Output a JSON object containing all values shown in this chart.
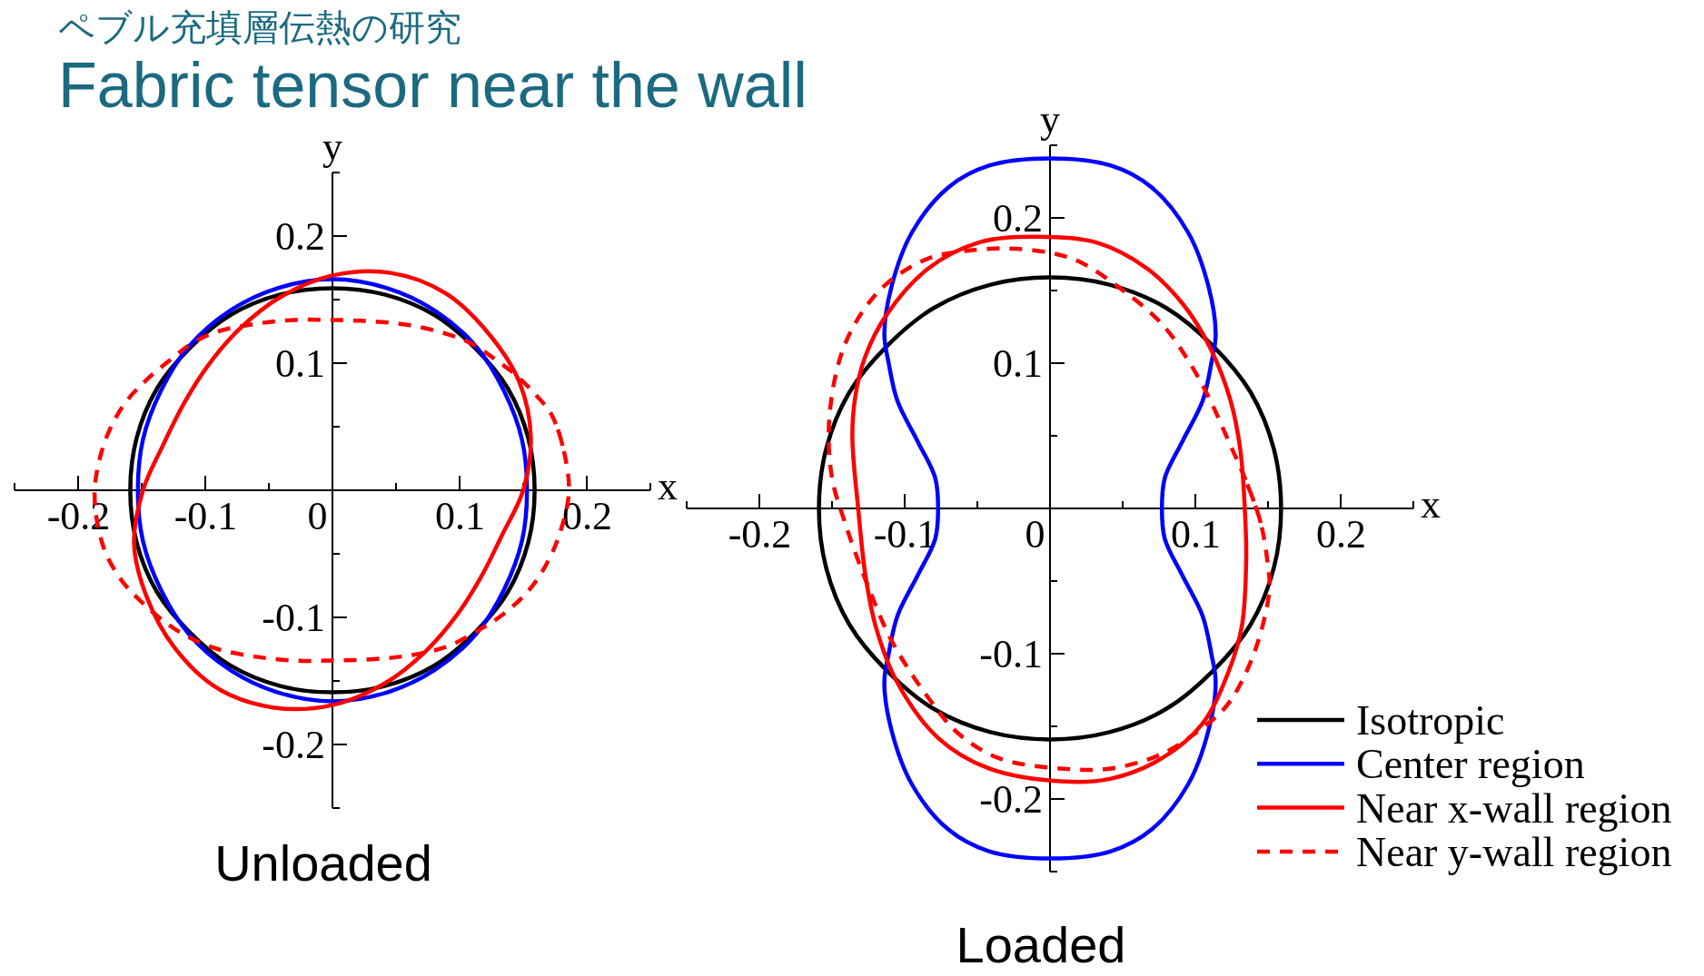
{
  "chart_data": [
    {
      "type": "line",
      "title": "ペブル充填層伝熱の研究",
      "subtitle": "Fabric tensor near the wall",
      "xlabel": "x",
      "ylabel": "y",
      "xlim": [
        -0.25,
        0.25
      ],
      "ylim": [
        -0.25,
        0.25
      ],
      "xticks": [
        {
          "value": -0.25,
          "label": null
        },
        -0.2,
        {
          "value": -0.15,
          "label": null
        },
        -0.1,
        {
          "value": -0.05,
          "label": null
        },
        0,
        {
          "value": 0.05,
          "label": null
        },
        0.1,
        {
          "value": 0.15,
          "label": null
        },
        0.2,
        {
          "value": 0.25,
          "label": null
        }
      ],
      "yticks": [
        {
          "value": -0.25,
          "label": null
        },
        -0.2,
        {
          "value": -0.15,
          "label": null
        },
        -0.1,
        {
          "value": -0.05,
          "label": null
        },
        {
          "value": 0.05,
          "label": null
        },
        0.1,
        {
          "value": 0.15,
          "label": null
        },
        0.2,
        {
          "value": 0.25,
          "label": null
        }
      ],
      "annotations": [
        "Unloaded"
      ],
      "series": [
        {
          "color": "#000000",
          "x": [
            0.159,
            0.154,
            0.138,
            0.112,
            0.08,
            0.041,
            0,
            -0.041,
            -0.08,
            -0.112,
            -0.138,
            -0.154,
            -0.159,
            -0.154,
            -0.138,
            -0.112,
            -0.08,
            -0.041,
            0,
            0.041,
            0.08,
            0.112,
            0.138,
            0.154,
            0.159
          ],
          "values": [
            0,
            0.041,
            0.08,
            0.112,
            0.138,
            0.154,
            0.159,
            0.154,
            0.138,
            0.112,
            0.08,
            0.041,
            0,
            -0.041,
            -0.08,
            -0.112,
            -0.138,
            -0.154,
            -0.159,
            -0.154,
            -0.138,
            -0.112,
            -0.08,
            -0.041,
            0
          ]
        },
        {
          "color": "#0000ff",
          "x": [
            0.153,
            0.149,
            0.135,
            0.113,
            0.081,
            0.043,
            0,
            -0.043,
            -0.081,
            -0.113,
            -0.135,
            -0.149,
            -0.153,
            -0.149,
            -0.135,
            -0.113,
            -0.081,
            -0.043,
            0,
            0.043,
            0.081,
            0.113,
            0.135,
            0.149,
            0.153
          ],
          "values": [
            0,
            0.04,
            0.078,
            0.113,
            0.141,
            0.159,
            0.166,
            0.159,
            0.141,
            0.113,
            0.078,
            0.04,
            0,
            -0.04,
            -0.078,
            -0.113,
            -0.141,
            -0.159,
            -0.166,
            -0.159,
            -0.141,
            -0.113,
            -0.078,
            -0.04,
            0
          ]
        },
        {
          "color": "#ff0000",
          "x": [
            0.15,
            0.156,
            0.147,
            0.123,
            0.089,
            0.046,
            0,
            -0.041,
            -0.073,
            -0.098,
            -0.117,
            -0.133,
            -0.149,
            -0.156,
            -0.146,
            -0.124,
            -0.09,
            -0.046,
            0,
            0.041,
            0.073,
            0.098,
            0.117,
            0.133,
            0.15
          ],
          "values": [
            0,
            0.042,
            0.085,
            0.123,
            0.155,
            0.171,
            0.169,
            0.152,
            0.127,
            0.098,
            0.068,
            0.036,
            0,
            -0.042,
            -0.084,
            -0.124,
            -0.156,
            -0.171,
            -0.169,
            -0.152,
            -0.127,
            -0.098,
            -0.068,
            -0.036,
            0
          ]
        },
        {
          "color": "#ff0000",
          "line_style": "dashed",
          "x": [
            0.186,
            0.181,
            0.172,
            0.16,
            0.145,
            0.128,
            0.11,
            0.09,
            0.06,
            0.03,
            0.0,
            -0.03,
            -0.06,
            -0.09,
            -0.11,
            -0.127,
            -0.145,
            -0.162,
            -0.175,
            -0.183,
            -0.187,
            -0.185,
            -0.178,
            -0.165,
            -0.15,
            -0.13,
            -0.112,
            -0.09,
            -0.06,
            -0.03,
            0.0,
            0.03,
            0.06,
            0.09,
            0.115,
            0.135,
            0.155,
            0.17,
            0.18,
            0.186
          ],
          "values": [
            0,
            0.035,
            0.06,
            0.075,
            0.09,
            0.103,
            0.115,
            0.123,
            0.13,
            0.133,
            0.134,
            0.134,
            0.131,
            0.125,
            0.116,
            0.103,
            0.088,
            0.07,
            0.048,
            0.025,
            0,
            -0.025,
            -0.05,
            -0.072,
            -0.088,
            -0.105,
            -0.116,
            -0.125,
            -0.131,
            -0.134,
            -0.134,
            -0.133,
            -0.13,
            -0.123,
            -0.11,
            -0.097,
            -0.078,
            -0.055,
            -0.03,
            0
          ]
        }
      ]
    },
    {
      "type": "line",
      "xlabel": "x",
      "ylabel": "y",
      "xlim": [
        -0.25,
        0.25
      ],
      "ylim": [
        -0.25,
        0.25
      ],
      "xticks": [
        {
          "value": -0.25,
          "label": null
        },
        -0.2,
        {
          "value": -0.15,
          "label": null
        },
        -0.1,
        {
          "value": -0.05,
          "label": null
        },
        0,
        {
          "value": 0.05,
          "label": null
        },
        0.1,
        {
          "value": 0.15,
          "label": null
        },
        0.2,
        {
          "value": 0.25,
          "label": null
        }
      ],
      "yticks": [
        {
          "value": -0.25,
          "label": null
        },
        -0.2,
        {
          "value": -0.15,
          "label": null
        },
        -0.1,
        {
          "value": -0.05,
          "label": null
        },
        {
          "value": 0.05,
          "label": null
        },
        0.1,
        {
          "value": 0.15,
          "label": null
        },
        0.2,
        {
          "value": 0.25,
          "label": null
        }
      ],
      "legend": "bottom right",
      "annotations": [
        "Loaded"
      ],
      "series": [
        {
          "name": "Isotropic",
          "color": "#000000",
          "x": [
            0.159,
            0.154,
            0.138,
            0.112,
            0.08,
            0.041,
            0,
            -0.041,
            -0.08,
            -0.112,
            -0.138,
            -0.154,
            -0.159,
            -0.154,
            -0.138,
            -0.112,
            -0.08,
            -0.041,
            0,
            0.041,
            0.08,
            0.112,
            0.138,
            0.154,
            0.159
          ],
          "values": [
            0,
            0.041,
            0.08,
            0.112,
            0.138,
            0.154,
            0.159,
            0.154,
            0.138,
            0.112,
            0.08,
            0.041,
            0,
            -0.041,
            -0.08,
            -0.112,
            -0.138,
            -0.154,
            -0.159,
            -0.154,
            -0.138,
            -0.112,
            -0.08,
            -0.041,
            0
          ]
        },
        {
          "name": "Center region",
          "color": "#0000ff",
          "x": [
            0.077,
            0.079,
            0.091,
            0.105,
            0.111,
            0.114,
            0.109,
            0.095,
            0.07,
            0.042,
            0,
            -0.042,
            -0.07,
            -0.095,
            -0.109,
            -0.114,
            -0.111,
            -0.105,
            -0.091,
            -0.079,
            -0.077,
            -0.079,
            -0.091,
            -0.105,
            -0.111,
            -0.114,
            -0.109,
            -0.095,
            -0.07,
            -0.042,
            0,
            0.042,
            0.07,
            0.095,
            0.109,
            0.114,
            0.111,
            0.105,
            0.091,
            0.079,
            0.077
          ],
          "values": [
            0,
            0.021,
            0.046,
            0.074,
            0.1,
            0.12,
            0.153,
            0.19,
            0.221,
            0.236,
            0.241,
            0.236,
            0.221,
            0.19,
            0.153,
            0.12,
            0.1,
            0.074,
            0.046,
            0.021,
            0,
            -0.021,
            -0.046,
            -0.074,
            -0.1,
            -0.12,
            -0.153,
            -0.19,
            -0.221,
            -0.236,
            -0.241,
            -0.236,
            -0.221,
            -0.19,
            -0.153,
            -0.12,
            -0.1,
            -0.074,
            -0.046,
            -0.021,
            0
          ]
        },
        {
          "name": "Near x-wall region",
          "color": "#ff0000",
          "x": [
            0.134,
            0.131,
            0.124,
            0.11,
            0.092,
            0.067,
            0.032,
            -0.01,
            -0.049,
            -0.084,
            -0.112,
            -0.127,
            -0.134,
            -0.136,
            -0.132,
            -0.127,
            -0.12,
            -0.105,
            -0.077,
            -0.042,
            0.01,
            0.042,
            0.077,
            0.105,
            0.123,
            0.132,
            0.135,
            0.134
          ],
          "values": [
            0,
            0.04,
            0.075,
            0.111,
            0.14,
            0.165,
            0.183,
            0.187,
            0.183,
            0.165,
            0.134,
            0.105,
            0.077,
            0.049,
            0,
            -0.046,
            -0.081,
            -0.12,
            -0.158,
            -0.179,
            -0.188,
            -0.186,
            -0.172,
            -0.148,
            -0.112,
            -0.081,
            -0.035,
            0
          ]
        },
        {
          "name": "Near y-wall region",
          "color": "#ff0000",
          "line_style": "dashed",
          "x": [
            0.15,
            0.145,
            0.134,
            0.123,
            0.109,
            0.095,
            0.077,
            0.049,
            0.02,
            0.0,
            -0.03,
            -0.06,
            -0.084,
            -0.112,
            -0.13,
            -0.144,
            -0.152,
            -0.15,
            -0.141,
            -0.127,
            -0.109,
            -0.084,
            -0.063,
            -0.035,
            0.007,
            0.042,
            0.077,
            0.105,
            0.123,
            0.141,
            0.151,
            0.15
          ],
          "values": [
            -0.04,
            -0.01,
            0.021,
            0.046,
            0.077,
            0.102,
            0.127,
            0.151,
            0.17,
            0.176,
            0.179,
            0.177,
            0.172,
            0.155,
            0.134,
            0.105,
            0.06,
            0.021,
            -0.01,
            -0.049,
            -0.091,
            -0.13,
            -0.155,
            -0.172,
            -0.179,
            -0.179,
            -0.169,
            -0.151,
            -0.134,
            -0.098,
            -0.056,
            -0.04
          ]
        }
      ]
    }
  ]
}
